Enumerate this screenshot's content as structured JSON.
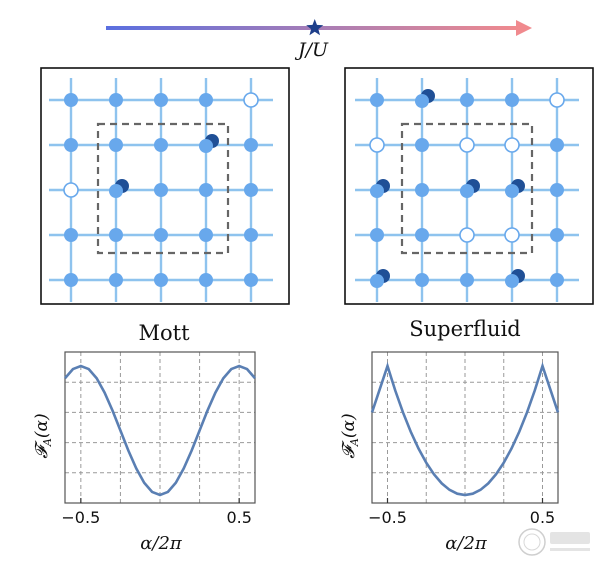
{
  "header": {
    "axis_label": "J/U",
    "arrow_gradient": [
      "#5a6fe0",
      "#f08a8e"
    ],
    "star_color": "#1e3f8a",
    "star_position_fraction": 0.49
  },
  "colors": {
    "lattice_line": "#8ec3ee",
    "site_fill": "#68a8ec",
    "empty_site_stroke": "#68a8ec",
    "double_occupancy_dark": "#1f4f96",
    "region_border": "#666666",
    "curve": "#5a7fb3"
  },
  "panels": [
    {
      "label": "Mott",
      "grid_size": 5,
      "empty_sites": [
        [
          4,
          0
        ],
        [
          0,
          2
        ]
      ],
      "double_sites": [
        [
          3,
          1
        ],
        [
          1,
          2
        ]
      ]
    },
    {
      "label": "Superfluid",
      "grid_size": 5,
      "empty_sites": [
        [
          4,
          0
        ],
        [
          0,
          1
        ],
        [
          2,
          1
        ],
        [
          3,
          1
        ],
        [
          2,
          3
        ],
        [
          3,
          3
        ]
      ],
      "double_sites": [
        [
          1,
          0
        ],
        [
          0,
          2
        ],
        [
          2,
          2
        ],
        [
          3,
          2
        ],
        [
          0,
          4
        ],
        [
          3,
          4
        ]
      ]
    }
  ],
  "chart_data": [
    {
      "type": "line",
      "xlabel": "α/2π",
      "ylabel": "𝓕_A(α)",
      "x_ticks": [
        "−0.5",
        "0.5"
      ],
      "x_tick_values": [
        -0.5,
        0.5
      ],
      "xlim": [
        -0.6,
        0.6
      ],
      "ylim": [
        0,
        1
      ],
      "grid": true,
      "series": [
        {
          "x": [
            -0.6,
            -0.55,
            -0.5,
            -0.45,
            -0.4,
            -0.35,
            -0.3,
            -0.25,
            -0.2,
            -0.15,
            -0.1,
            -0.05,
            0,
            0.05,
            0.1,
            0.15,
            0.2,
            0.25,
            0.3,
            0.35,
            0.4,
            0.45,
            0.5,
            0.55,
            0.6
          ],
          "y": [
            0.905,
            0.976,
            1.0,
            0.976,
            0.905,
            0.794,
            0.655,
            0.5,
            0.345,
            0.206,
            0.095,
            0.024,
            0.0,
            0.024,
            0.095,
            0.206,
            0.345,
            0.5,
            0.655,
            0.794,
            0.905,
            0.976,
            1.0,
            0.976,
            0.905
          ]
        }
      ]
    },
    {
      "type": "line",
      "xlabel": "α/2π",
      "ylabel": "𝓕_A(α)",
      "x_ticks": [
        "−0.5",
        "0.5"
      ],
      "x_tick_values": [
        -0.5,
        0.5
      ],
      "xlim": [
        -0.6,
        0.6
      ],
      "ylim": [
        0,
        1
      ],
      "grid": true,
      "series": [
        {
          "x": [
            -0.6,
            -0.55,
            -0.5,
            -0.45,
            -0.4,
            -0.35,
            -0.3,
            -0.25,
            -0.2,
            -0.15,
            -0.1,
            -0.05,
            0,
            0.05,
            0.1,
            0.15,
            0.2,
            0.25,
            0.3,
            0.35,
            0.4,
            0.45,
            0.5,
            0.55,
            0.6
          ],
          "y": [
            0.64,
            0.82,
            1.0,
            0.81,
            0.64,
            0.49,
            0.36,
            0.25,
            0.16,
            0.09,
            0.04,
            0.01,
            0.0,
            0.01,
            0.04,
            0.09,
            0.16,
            0.25,
            0.36,
            0.49,
            0.64,
            0.81,
            1.0,
            0.82,
            0.64
          ]
        }
      ]
    }
  ]
}
